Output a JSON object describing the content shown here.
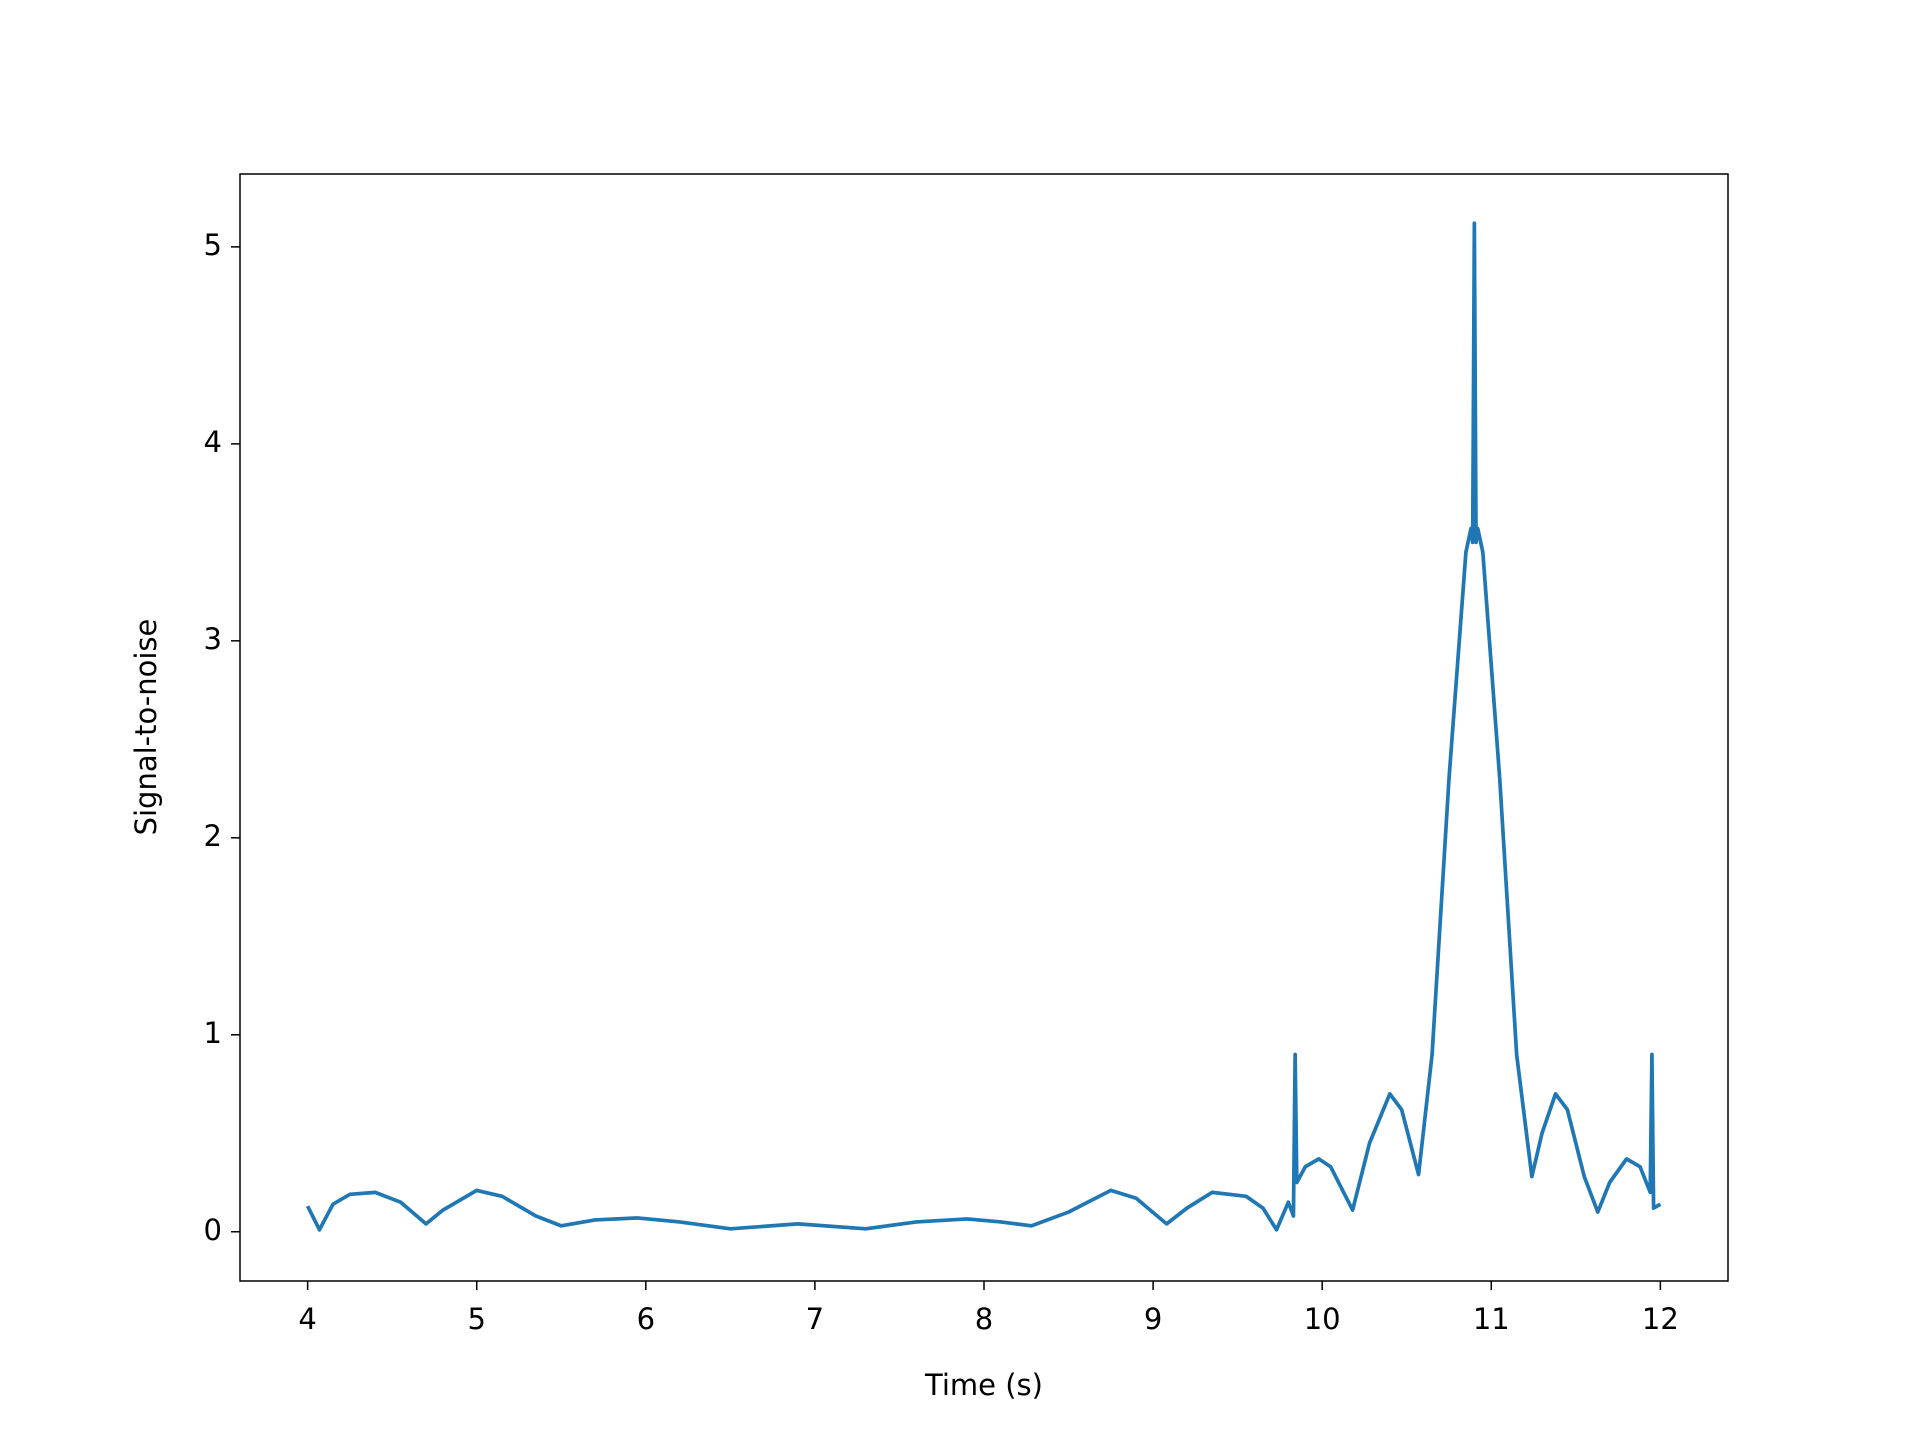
{
  "chart_data": {
    "type": "line",
    "xlabel": "Time (s)",
    "ylabel": "Signal-to-noise",
    "xlim": [
      3.6,
      12.4
    ],
    "ylim": [
      -0.25,
      5.37
    ],
    "xticks": [
      4,
      5,
      6,
      7,
      8,
      9,
      10,
      11,
      12
    ],
    "yticks": [
      0,
      1,
      2,
      3,
      4,
      5
    ],
    "series": [
      {
        "color": "#1f77b4",
        "x": [
          4.0,
          4.07,
          4.15,
          4.25,
          4.4,
          4.55,
          4.7,
          4.8,
          5.0,
          5.15,
          5.35,
          5.5,
          5.7,
          5.95,
          6.2,
          6.5,
          6.9,
          7.3,
          7.6,
          7.9,
          8.1,
          8.28,
          8.5,
          8.75,
          8.9,
          9.08,
          9.2,
          9.35,
          9.55,
          9.65,
          9.73,
          9.8,
          9.83,
          9.84,
          9.85,
          9.9,
          9.98,
          10.05,
          10.18,
          10.28,
          10.4,
          10.47,
          10.57,
          10.65,
          10.75,
          10.85,
          10.88,
          10.89,
          10.9,
          10.91,
          10.92,
          10.95,
          11.05,
          11.15,
          11.24,
          11.3,
          11.38,
          11.45,
          11.55,
          11.63,
          11.7,
          11.8,
          11.88,
          11.94,
          11.95,
          11.96,
          12.0
        ],
        "values": [
          0.13,
          0.01,
          0.14,
          0.19,
          0.2,
          0.15,
          0.04,
          0.11,
          0.21,
          0.18,
          0.08,
          0.03,
          0.06,
          0.07,
          0.05,
          0.015,
          0.04,
          0.015,
          0.05,
          0.065,
          0.05,
          0.03,
          0.1,
          0.21,
          0.17,
          0.04,
          0.12,
          0.2,
          0.18,
          0.12,
          0.01,
          0.15,
          0.08,
          0.9,
          0.25,
          0.33,
          0.37,
          0.33,
          0.11,
          0.45,
          0.7,
          0.62,
          0.29,
          0.9,
          2.3,
          3.45,
          3.57,
          3.5,
          5.12,
          3.5,
          3.57,
          3.45,
          2.3,
          0.9,
          0.28,
          0.5,
          0.7,
          0.62,
          0.28,
          0.1,
          0.25,
          0.37,
          0.33,
          0.2,
          0.9,
          0.12,
          0.14
        ]
      }
    ]
  }
}
